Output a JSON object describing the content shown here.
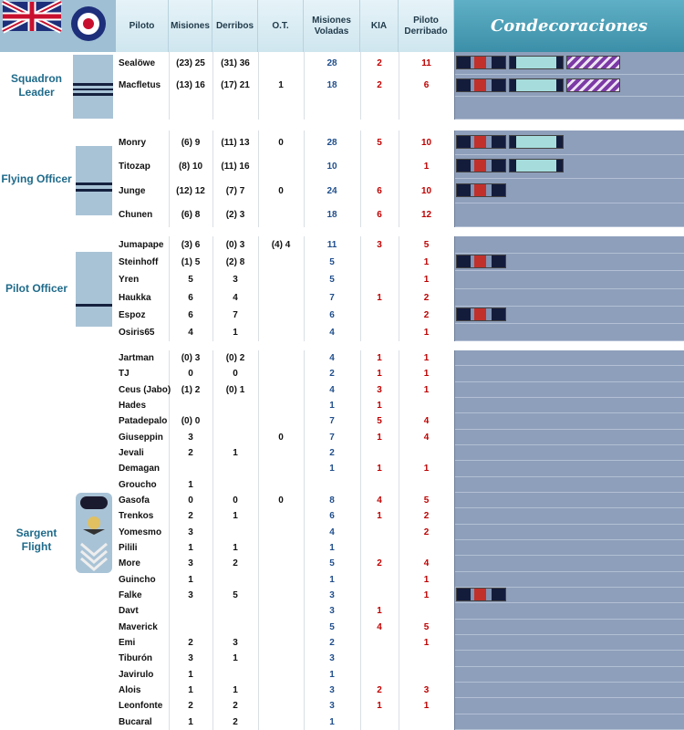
{
  "header": {
    "columns": [
      "Piloto",
      "Misiones",
      "Derribos",
      "O.T.",
      "Misiones Voladas",
      "KIA",
      "Piloto Derribado"
    ],
    "decorations": "Condecoraciones"
  },
  "sections": [
    {
      "rank": "Squadron Leader",
      "rows": [
        [
          "Sealöwe",
          "(23) 25",
          "(31) 36",
          null,
          28,
          2,
          11
        ],
        [
          "Macfletus",
          "(13) 16",
          "(17) 21",
          1,
          18,
          2,
          6
        ]
      ]
    },
    {
      "rank": "Flying Officer",
      "rows": [
        [
          "Monry",
          "(6) 9",
          "(11) 13",
          0,
          28,
          5,
          10
        ],
        [
          "Titozap",
          "(8) 10",
          "(11) 16",
          null,
          10,
          null,
          1
        ],
        [
          "Junge",
          "(12) 12",
          "(7) 7",
          0,
          24,
          6,
          10
        ],
        [
          "Chunen",
          "(6) 8",
          "(2) 3",
          null,
          18,
          6,
          12
        ]
      ]
    },
    {
      "rank": "Pilot Officer",
      "rows": [
        [
          "Jumapape",
          "(3) 6",
          "(0) 3",
          "(4) 4",
          11,
          3,
          5
        ],
        [
          "Steinhoff",
          "(1) 5",
          "(2) 8",
          null,
          5,
          null,
          1
        ],
        [
          "Yren",
          5,
          3,
          null,
          5,
          null,
          1
        ],
        [
          "Haukka",
          6,
          4,
          null,
          7,
          1,
          2
        ],
        [
          "Espoz",
          6,
          7,
          null,
          6,
          null,
          2
        ],
        [
          "Osiris65",
          4,
          1,
          null,
          4,
          null,
          1
        ]
      ]
    },
    {
      "rank": "Sargent Flight",
      "rows": [
        [
          "Jartman",
          "(0) 3",
          "(0) 2",
          null,
          4,
          1,
          1
        ],
        [
          "TJ",
          0,
          0,
          null,
          2,
          1,
          1
        ],
        [
          "Ceus (Jabo)",
          "(1) 2",
          "(0) 1",
          null,
          4,
          3,
          1
        ],
        [
          "Hades",
          null,
          null,
          null,
          1,
          1,
          null
        ],
        [
          "Patadepalo",
          "(0) 0",
          null,
          null,
          7,
          5,
          4
        ],
        [
          "Giuseppin",
          3,
          null,
          0,
          7,
          1,
          4
        ],
        [
          "Jevali",
          2,
          1,
          null,
          2,
          null,
          null
        ],
        [
          "Demagan",
          null,
          null,
          null,
          1,
          1,
          1
        ],
        [
          "Groucho",
          1,
          null,
          null,
          null,
          null,
          null
        ],
        [
          "Gasofa",
          0,
          0,
          0,
          8,
          4,
          5
        ],
        [
          "Trenkos",
          2,
          1,
          null,
          6,
          1,
          2
        ],
        [
          "Yomesmo",
          3,
          null,
          null,
          4,
          null,
          2
        ],
        [
          "Pilili",
          1,
          1,
          null,
          1,
          null,
          null
        ],
        [
          "More",
          3,
          2,
          null,
          5,
          2,
          4
        ],
        [
          "Guincho",
          1,
          null,
          null,
          1,
          null,
          1
        ],
        [
          "Falke",
          3,
          5,
          null,
          3,
          null,
          1
        ],
        [
          "Davt",
          null,
          null,
          null,
          3,
          1,
          null
        ],
        [
          "Maverick",
          null,
          null,
          null,
          5,
          4,
          5
        ],
        [
          "Emi",
          2,
          3,
          null,
          2,
          null,
          1
        ],
        [
          "Tiburón",
          3,
          1,
          null,
          3,
          null,
          null
        ],
        [
          "Javirulo",
          1,
          null,
          null,
          1,
          null,
          null
        ],
        [
          "Alois",
          1,
          1,
          null,
          3,
          2,
          3
        ],
        [
          "Leonfonte",
          2,
          2,
          null,
          3,
          1,
          1
        ],
        [
          "Bucaral",
          1,
          2,
          null,
          1,
          null,
          null
        ]
      ]
    }
  ]
}
